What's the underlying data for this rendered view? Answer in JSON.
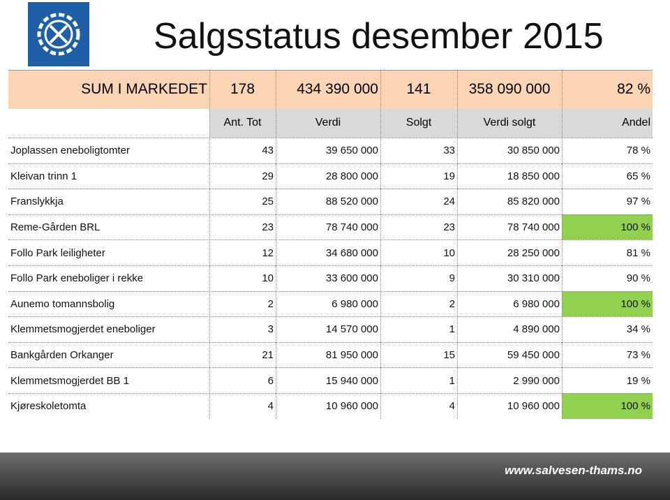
{
  "title": "Salgsstatus desember 2015",
  "summary": [
    "SUM I MARKEDET",
    "178",
    "434 390 000",
    "141",
    "358 090 000",
    "82 %"
  ],
  "header": [
    "",
    "Ant. Tot",
    "Verdi",
    "Solgt",
    "Verdi solgt",
    "Andel"
  ],
  "rows": [
    [
      "Joplassen eneboligtomter",
      "43",
      "39 650 000",
      "33",
      "30 850 000",
      "78 %"
    ],
    [
      "Kleivan trinn 1",
      "29",
      "28 800 000",
      "19",
      "18 850 000",
      "65 %"
    ],
    [
      "Franslykkja",
      "25",
      "88 520 000",
      "24",
      "85 820 000",
      "97 %"
    ],
    [
      "Reme-Gården BRL",
      "23",
      "78 740 000",
      "23",
      "78 740 000",
      "100 %"
    ],
    [
      "Follo Park leiligheter",
      "12",
      "34 680 000",
      "10",
      "28 250 000",
      "81 %"
    ],
    [
      "Follo Park  eneboliger i rekke",
      "10",
      "33 600 000",
      "9",
      "30 310 000",
      "90 %"
    ],
    [
      "Aunemo tomannsbolig",
      "2",
      "6 980 000",
      "2",
      "6 980 000",
      "100 %"
    ],
    [
      "Klemmetsmogjerdet eneboliger",
      "3",
      "14 570 000",
      "1",
      "4 890 000",
      "34 %"
    ],
    [
      "Bankgården Orkanger",
      "21",
      "81 950 000",
      "15",
      "59 450 000",
      "73 %"
    ],
    [
      "Klemmetsmogjerdet BB 1",
      "6",
      "15 940 000",
      "1",
      "2 990 000",
      "19 %"
    ],
    [
      "Kjøreskoletomta",
      "4",
      "10 960 000",
      "4",
      "10 960 000",
      "100 %"
    ]
  ],
  "highlight": {
    "color": "#92d050",
    "rows": [
      3,
      6,
      10
    ]
  },
  "footer": "www.salvesen-thams.no"
}
